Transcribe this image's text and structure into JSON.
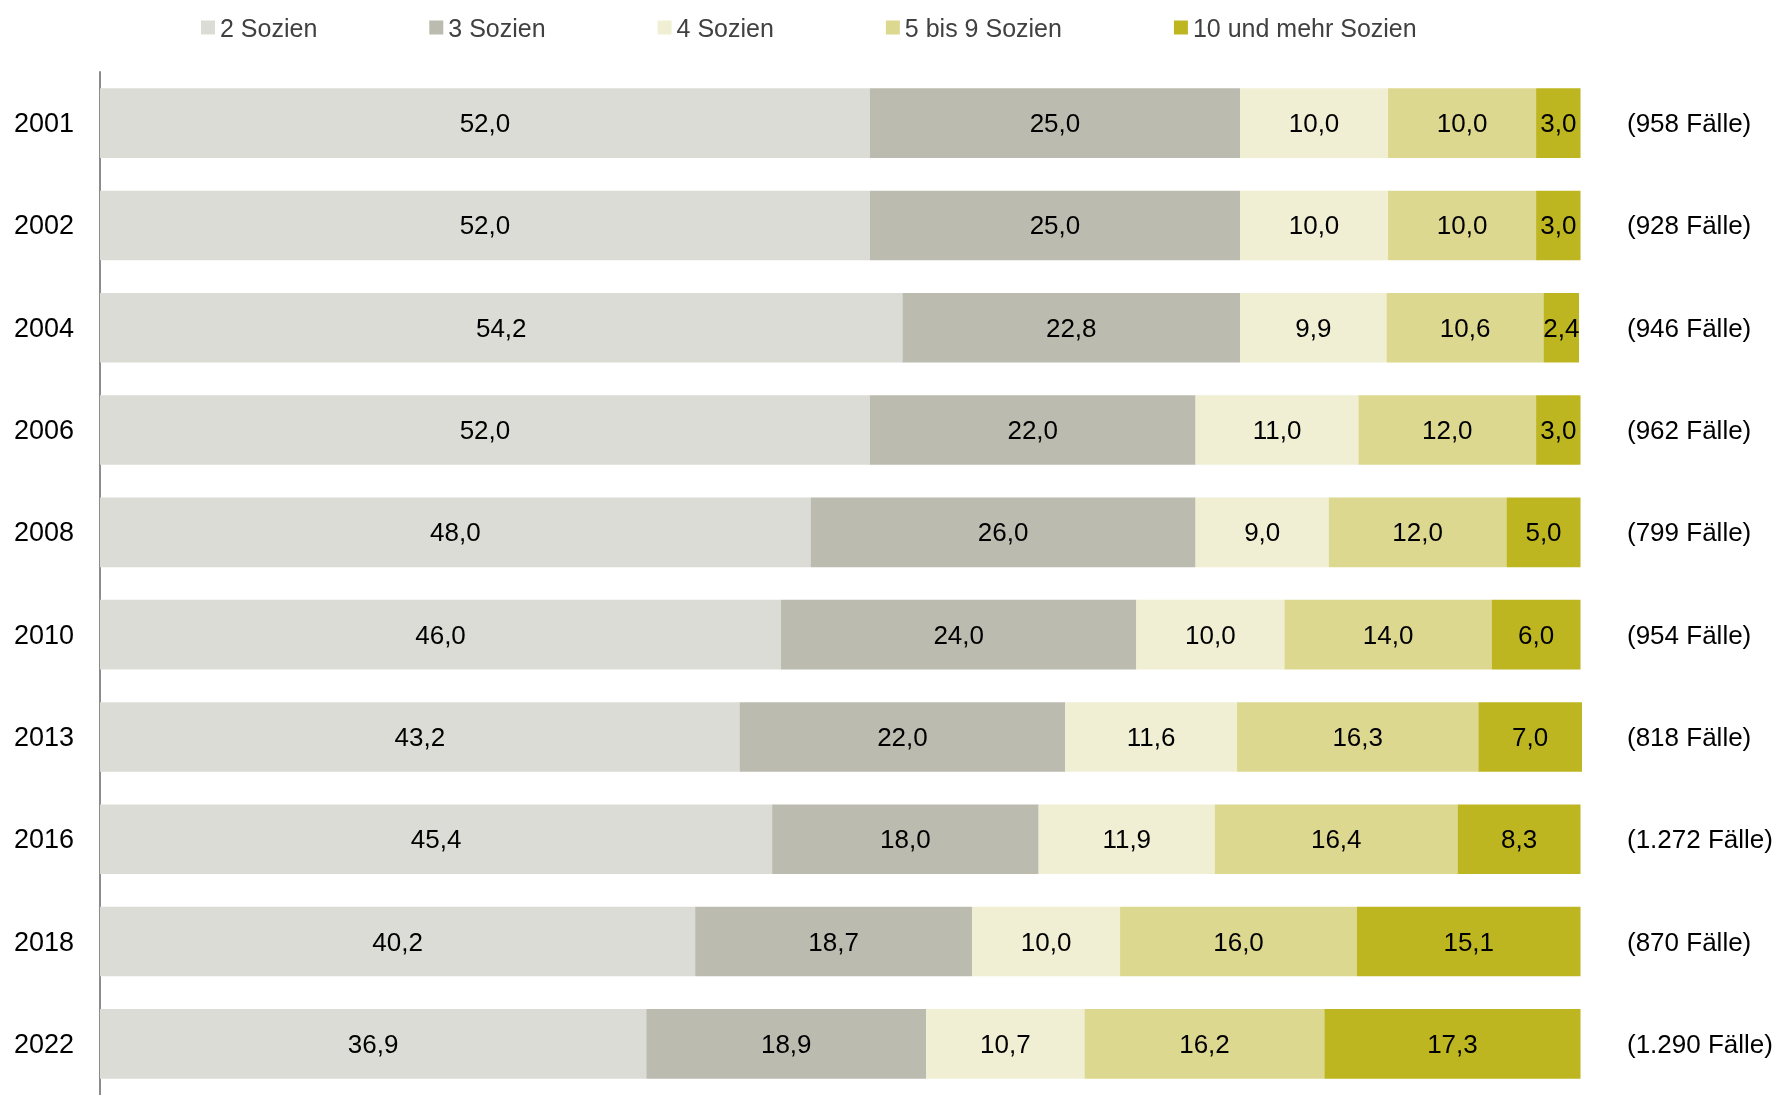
{
  "chart_data": {
    "type": "bar",
    "orientation": "horizontal",
    "stacked": true,
    "legend": "top",
    "tick_labels": "y",
    "categories": [
      "2001",
      "2002",
      "2004",
      "2006",
      "2008",
      "2010",
      "2013",
      "2016",
      "2018",
      "2022"
    ],
    "series": [
      {
        "name": "2 Sozien",
        "color": "#dcdcd6",
        "values": [
          52.0,
          52.0,
          54.2,
          52.0,
          48.0,
          46.0,
          43.2,
          45.4,
          40.2,
          36.9
        ],
        "value_labels": [
          "52,0",
          "52,0",
          "54,2",
          "52,0",
          "48,0",
          "46,0",
          "43,2",
          "45,4",
          "40,2",
          "36,9"
        ]
      },
      {
        "name": "3 Sozien",
        "color": "#bbbbb0",
        "values": [
          25.0,
          25.0,
          22.8,
          22.0,
          26.0,
          24.0,
          22.0,
          18.0,
          18.7,
          18.9
        ],
        "value_labels": [
          "25,0",
          "25,0",
          "22,8",
          "22,0",
          "26,0",
          "24,0",
          "22,0",
          "18,0",
          "18,7",
          "18,9"
        ]
      },
      {
        "name": "4 Sozien",
        "color": "#f0efd4",
        "values": [
          10.0,
          10.0,
          9.9,
          11.0,
          9.0,
          10.0,
          11.6,
          11.9,
          10.0,
          10.7
        ],
        "value_labels": [
          "10,0",
          "10,0",
          "9,9",
          "11,0",
          "9,0",
          "10,0",
          "11,6",
          "11,9",
          "10,0",
          "10,7"
        ]
      },
      {
        "name": "5 bis 9 Sozien",
        "color": "#ddd890",
        "values": [
          10.0,
          10.0,
          10.6,
          12.0,
          12.0,
          14.0,
          16.3,
          16.4,
          16.0,
          16.2
        ],
        "value_labels": [
          "10,0",
          "10,0",
          "10,6",
          "12,0",
          "12,0",
          "14,0",
          "16,3",
          "16,4",
          "16,0",
          "16,2"
        ]
      },
      {
        "name": "10 und mehr Sozien",
        "color": "#bdb621",
        "values": [
          3.0,
          3.0,
          2.4,
          3.0,
          5.0,
          6.0,
          7.0,
          8.3,
          15.1,
          17.3
        ],
        "value_labels": [
          "3,0",
          "3,0",
          "2,4",
          "3,0",
          "5,0",
          "6,0",
          "7,0",
          "8,3",
          "15,1",
          "17,3"
        ]
      }
    ],
    "annotations": [
      "(958 Fälle)",
      "(928 Fälle)",
      "(946 Fälle)",
      "(962 Fälle)",
      "(799 Fälle)",
      "(954 Fälle)",
      "(818 Fälle)",
      "(1.272 Fälle)",
      "(870 Fälle)",
      "(1.290 Fälle)"
    ]
  }
}
